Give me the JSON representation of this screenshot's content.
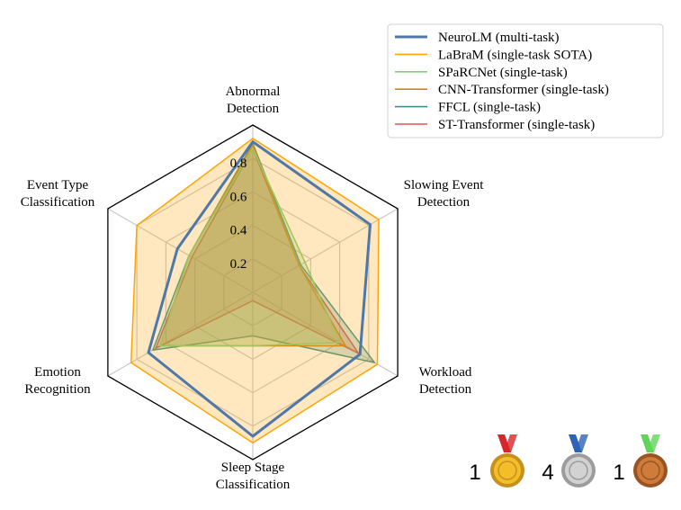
{
  "chart_data": {
    "type": "radar",
    "axes": [
      {
        "label_lines": [
          "Abnormal",
          "Detection"
        ]
      },
      {
        "label_lines": [
          "Slowing Event",
          "Detection"
        ]
      },
      {
        "label_lines": [
          "Workload",
          "Detection"
        ]
      },
      {
        "label_lines": [
          "Sleep Stage",
          "Classification"
        ]
      },
      {
        "label_lines": [
          "Emotion",
          "Recognition"
        ]
      },
      {
        "label_lines": [
          "Event Type",
          "Classification"
        ]
      }
    ],
    "rlim": [
      0,
      1
    ],
    "tick_values": [
      0.2,
      0.4,
      0.6,
      0.8
    ],
    "tick_labels": [
      "0.2",
      "0.4",
      "0.6",
      "0.8"
    ],
    "grid": true,
    "legend_placement": "top-right",
    "series": [
      {
        "name": "NeuroLM (multi-task)",
        "color": "#4e77aa",
        "fill": false,
        "bold": true,
        "values": [
          0.9,
          0.81,
          0.74,
          0.86,
          0.72,
          0.52
        ]
      },
      {
        "name": "LaBraM (single-task SOTA)",
        "color": "#ffa500",
        "fill": true,
        "values": [
          0.92,
          0.87,
          0.86,
          0.9,
          0.84,
          0.8
        ]
      },
      {
        "name": "SPaRCNet (single-task)",
        "color": "#7ed07e",
        "fill": true,
        "values": [
          0.86,
          0.36,
          0.6,
          0.32,
          0.64,
          0.44
        ]
      },
      {
        "name": "CNN-Transformer (single-task)",
        "color": "#c8871e",
        "fill": true,
        "values": [
          0.88,
          0.32,
          0.64,
          0.32,
          0.64,
          0.44
        ]
      },
      {
        "name": "FFCL (single-task)",
        "color": "#3b9090",
        "fill": true,
        "values": [
          0.89,
          0.33,
          0.84,
          0.26,
          0.69,
          0.44
        ]
      },
      {
        "name": "ST-Transformer (single-task)",
        "color": "#e05555",
        "fill": true,
        "values": [
          0.86,
          0.32,
          0.73,
          0.05,
          0.67,
          0.42
        ]
      }
    ]
  },
  "medals": [
    {
      "count": "1",
      "name": "gold-medal",
      "ribbon": "#d8262a",
      "disc": "#f2bf2b",
      "disc_dark": "#c8901a"
    },
    {
      "count": "4",
      "name": "silver-medal",
      "ribbon": "#2f63b8",
      "disc": "#d2d2d2",
      "disc_dark": "#9c9c9c"
    },
    {
      "count": "1",
      "name": "bronze-medal",
      "ribbon": "#5fd45a",
      "disc": "#cf7b3a",
      "disc_dark": "#9a5424"
    }
  ]
}
